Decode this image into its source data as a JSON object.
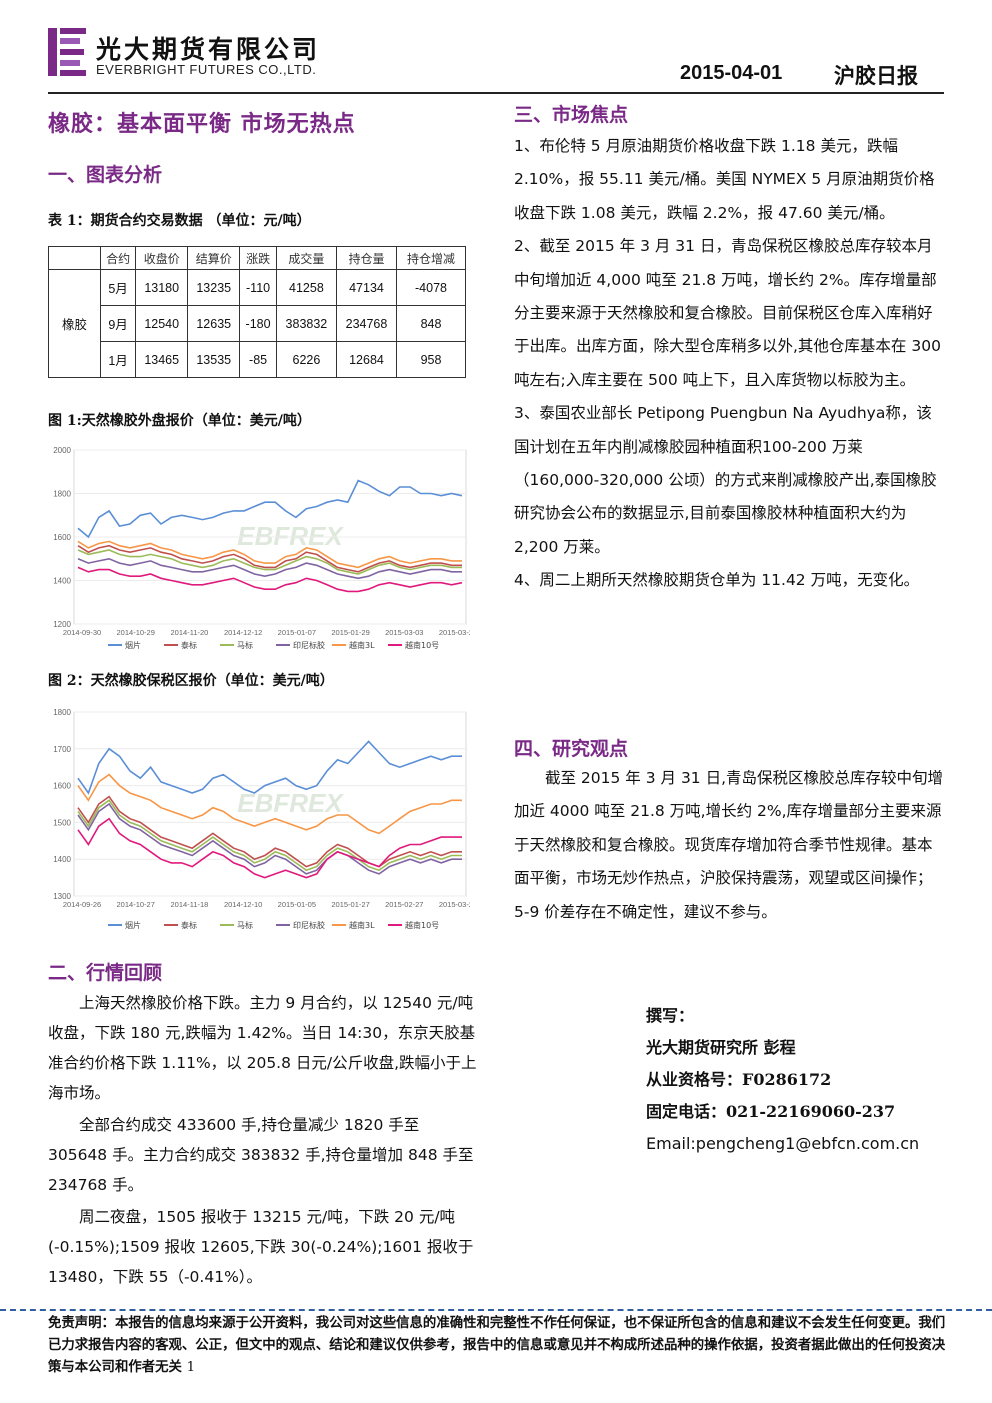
{
  "header": {
    "logo_cn": "光大期货有限公司",
    "logo_en": "EVERBRIGHT FUTURES CO.,LTD.",
    "date": "2015-04-01",
    "report_type": "沪胶日报"
  },
  "title": "橡胶：基本面平衡 市场无热点",
  "section1": {
    "heading": "一、图表分析",
    "table_caption": "表 1：期货合约交易数据 （单位：元/吨）",
    "table": {
      "headers": [
        "合约",
        "收盘价",
        "结算价",
        "涨跌",
        "成交量",
        "持仓量",
        "持仓增减"
      ],
      "product": "橡胶",
      "rows": [
        [
          "5月",
          "13180",
          "13235",
          "-110",
          "41258",
          "47134",
          "-4078"
        ],
        [
          "9月",
          "12540",
          "12635",
          "-180",
          "383832",
          "234768",
          "848"
        ],
        [
          "1月",
          "13465",
          "13535",
          "-85",
          "6226",
          "12684",
          "958"
        ]
      ]
    },
    "fig1_caption": "图 1:天然橡胶外盘报价（单位：美元/吨）",
    "fig2_caption": "图 2：天然橡胶保税区报价（单位：美元/吨）"
  },
  "chart_data": [
    {
      "type": "line",
      "x_ticks": [
        "2014-09-30",
        "2014-10-29",
        "2014-11-20",
        "2014-12-12",
        "2015-01-07",
        "2015-01-29",
        "2015-03-03",
        "2015-03-25"
      ],
      "ylim": [
        1200,
        2000
      ],
      "y_ticks": [
        1200,
        1400,
        1600,
        1800,
        2000
      ],
      "watermark": "EBFREX",
      "series": [
        {
          "name": "烟片",
          "color": "#5a8fd6",
          "values": [
            1640,
            1600,
            1690,
            1720,
            1650,
            1660,
            1700,
            1710,
            1660,
            1690,
            1700,
            1690,
            1680,
            1690,
            1710,
            1720,
            1720,
            1740,
            1760,
            1760,
            1720,
            1690,
            1730,
            1740,
            1760,
            1770,
            1760,
            1860,
            1840,
            1810,
            1790,
            1830,
            1830,
            1800,
            1800,
            1790,
            1800,
            1790
          ]
        },
        {
          "name": "泰标",
          "color": "#c0504d",
          "values": [
            1560,
            1530,
            1550,
            1560,
            1540,
            1530,
            1540,
            1550,
            1530,
            1520,
            1500,
            1490,
            1480,
            1490,
            1510,
            1520,
            1500,
            1470,
            1460,
            1460,
            1490,
            1500,
            1530,
            1520,
            1490,
            1460,
            1450,
            1440,
            1460,
            1480,
            1490,
            1470,
            1460,
            1470,
            1480,
            1480,
            1470,
            1470
          ]
        },
        {
          "name": "马标",
          "color": "#9bbb59",
          "values": [
            1540,
            1520,
            1530,
            1540,
            1520,
            1510,
            1510,
            1520,
            1510,
            1500,
            1480,
            1470,
            1460,
            1470,
            1490,
            1500,
            1480,
            1460,
            1450,
            1450,
            1470,
            1490,
            1510,
            1500,
            1480,
            1450,
            1440,
            1430,
            1450,
            1470,
            1480,
            1460,
            1450,
            1460,
            1470,
            1470,
            1460,
            1460
          ]
        },
        {
          "name": "印尼标胶",
          "color": "#8064a2",
          "values": [
            1500,
            1480,
            1490,
            1500,
            1480,
            1470,
            1480,
            1490,
            1470,
            1460,
            1450,
            1440,
            1440,
            1450,
            1460,
            1470,
            1450,
            1430,
            1420,
            1430,
            1450,
            1460,
            1480,
            1470,
            1450,
            1430,
            1420,
            1410,
            1420,
            1440,
            1450,
            1440,
            1430,
            1440,
            1450,
            1450,
            1440,
            1440
          ]
        },
        {
          "name": "越南3L",
          "color": "#f79646",
          "values": [
            1580,
            1550,
            1570,
            1580,
            1560,
            1550,
            1560,
            1570,
            1550,
            1540,
            1520,
            1510,
            1500,
            1510,
            1530,
            1540,
            1520,
            1490,
            1480,
            1480,
            1510,
            1520,
            1550,
            1540,
            1510,
            1480,
            1470,
            1460,
            1480,
            1500,
            1510,
            1490,
            1480,
            1490,
            1500,
            1500,
            1490,
            1490
          ]
        },
        {
          "name": "越南10号",
          "color": "#e0197d",
          "values": [
            1460,
            1440,
            1450,
            1450,
            1430,
            1420,
            1420,
            1430,
            1410,
            1400,
            1390,
            1380,
            1380,
            1390,
            1400,
            1410,
            1390,
            1370,
            1360,
            1360,
            1380,
            1390,
            1410,
            1400,
            1380,
            1360,
            1350,
            1350,
            1360,
            1380,
            1390,
            1380,
            1370,
            1380,
            1390,
            1390,
            1380,
            1390
          ]
        }
      ]
    },
    {
      "type": "line",
      "x_ticks": [
        "2014-09-26",
        "2014-10-27",
        "2014-11-18",
        "2014-12-10",
        "2015-01-05",
        "2015-01-27",
        "2015-02-27",
        "2015-03-23"
      ],
      "ylim": [
        1300,
        1800
      ],
      "y_ticks": [
        1300,
        1400,
        1500,
        1600,
        1700,
        1800
      ],
      "watermark": "EBFREX",
      "series": [
        {
          "name": "烟片",
          "color": "#5a8fd6",
          "values": [
            1620,
            1580,
            1660,
            1700,
            1680,
            1640,
            1620,
            1650,
            1610,
            1600,
            1590,
            1580,
            1590,
            1620,
            1630,
            1610,
            1590,
            1580,
            1600,
            1610,
            1620,
            1600,
            1590,
            1600,
            1640,
            1670,
            1660,
            1690,
            1720,
            1690,
            1660,
            1650,
            1660,
            1670,
            1680,
            1670,
            1680,
            1680
          ]
        },
        {
          "name": "泰标",
          "color": "#c0504d",
          "values": [
            1540,
            1500,
            1550,
            1570,
            1530,
            1510,
            1500,
            1480,
            1460,
            1450,
            1440,
            1430,
            1450,
            1470,
            1450,
            1430,
            1420,
            1400,
            1410,
            1430,
            1420,
            1400,
            1380,
            1390,
            1420,
            1440,
            1430,
            1410,
            1390,
            1380,
            1400,
            1410,
            1420,
            1410,
            1420,
            1410,
            1420,
            1420
          ]
        },
        {
          "name": "马标",
          "color": "#9bbb59",
          "values": [
            1530,
            1490,
            1540,
            1560,
            1520,
            1500,
            1490,
            1470,
            1450,
            1440,
            1430,
            1420,
            1440,
            1460,
            1440,
            1420,
            1410,
            1390,
            1400,
            1420,
            1410,
            1390,
            1370,
            1380,
            1410,
            1430,
            1420,
            1400,
            1380,
            1370,
            1390,
            1400,
            1410,
            1400,
            1410,
            1400,
            1410,
            1410
          ]
        },
        {
          "name": "印尼标胶",
          "color": "#8064a2",
          "values": [
            1520,
            1480,
            1530,
            1550,
            1510,
            1490,
            1480,
            1460,
            1440,
            1430,
            1420,
            1410,
            1430,
            1450,
            1430,
            1410,
            1400,
            1380,
            1390,
            1410,
            1400,
            1380,
            1360,
            1370,
            1400,
            1420,
            1410,
            1390,
            1370,
            1360,
            1380,
            1390,
            1400,
            1390,
            1400,
            1390,
            1400,
            1400
          ]
        },
        {
          "name": "越南3L",
          "color": "#f79646",
          "values": [
            1600,
            1560,
            1610,
            1630,
            1600,
            1580,
            1570,
            1560,
            1540,
            1530,
            1520,
            1510,
            1520,
            1540,
            1530,
            1510,
            1500,
            1490,
            1500,
            1510,
            1500,
            1490,
            1480,
            1490,
            1510,
            1520,
            1520,
            1500,
            1480,
            1470,
            1490,
            1510,
            1530,
            1540,
            1550,
            1550,
            1560,
            1560
          ]
        },
        {
          "name": "越南10号",
          "color": "#e0197d",
          "values": [
            1480,
            1440,
            1490,
            1510,
            1470,
            1450,
            1440,
            1420,
            1400,
            1390,
            1390,
            1380,
            1400,
            1420,
            1410,
            1390,
            1380,
            1360,
            1350,
            1360,
            1370,
            1360,
            1350,
            1360,
            1400,
            1420,
            1410,
            1400,
            1390,
            1380,
            1410,
            1430,
            1440,
            1440,
            1450,
            1460,
            1460,
            1460
          ]
        }
      ]
    }
  ],
  "section2": {
    "heading": "二、行情回顾",
    "paragraphs": [
      "上海天然橡胶价格下跌。主力 9 月合约，以 12540 元/吨收盘，下跌 180 元,跌幅为 1.42%。当日 14:30，东京天胶基准合约价格下跌 1.11%，以 205.8 日元/公斤收盘,跌幅小于上海市场。",
      "全部合约成交 433600 手,持仓量减少 1820 手至 305648 手。主力合约成交 383832 手,持仓量增加 848 手至 234768 手。",
      "周二夜盘，1505 报收于 13215 元/吨，下跌 20 元/吨(-0.15%);1509 报收 12605,下跌 30(-0.24%);1601 报收于 13480，下跌 55（-0.41%）。"
    ]
  },
  "section3": {
    "heading": "三、市场焦点",
    "paragraphs": [
      "1、布伦特 5 月原油期货价格收盘下跌 1.18 美元，跌幅 2.10%，报 55.11 美元/桶。美国 NYMEX 5 月原油期货价格收盘下跌 1.08 美元，跌幅 2.2%，报 47.60 美元/桶。",
      "2、截至 2015 年 3 月 31 日，青岛保税区橡胶总库存较本月中旬增加近 4,000 吨至 21.8 万吨，增长约 2%。库存增量部分主要来源于天然橡胶和复合橡胶。目前保税区仓库入库稍好于出库。出库方面，除大型仓库稍多以外,其他仓库基本在 300 吨左右;入库主要在 500 吨上下，且入库货物以标胶为主。",
      "3、泰国农业部长 Petipong Puengbun Na Ayudhya称，该国计划在五年内削减橡胶园种植面积100-200 万莱（160,000-320,000 公顷）的方式来削减橡胶产出,泰国橡胶研究协会公布的数据显示,目前泰国橡胶林种植面积大约为 2,200 万莱。",
      "4、周二上期所天然橡胶期货仓单为 11.42 万吨，无变化。"
    ]
  },
  "section4": {
    "heading": "四、研究观点",
    "paragraph": "截至 2015 年 3 月 31 日,青岛保税区橡胶总库存较中旬增加近 4000 吨至 21.8 万吨,增长约 2%,库存增量部分主要来源于天然橡胶和复合橡胶。现货库存增加符合季节性规律。基本面平衡，市场无炒作热点，沪胶保持震荡，观望或区间操作；5-9 价差存在不确定性，建议不参与。"
  },
  "contact": {
    "label": "撰写：",
    "author": "光大期货研究所 彭程",
    "license": "从业资格号：F0286172",
    "phone": "固定电话：021-22169060-237",
    "email": "Email:pengcheng1@ebfcn.com.cn"
  },
  "footer": {
    "disclaimer": "免责声明：本报告的信息均来源于公开资料，我公司对这些信息的准确性和完整性不作任何保证，也不保证所包含的信息和建议不会发生任何变更。我们已力求报告内容的客观、公正，但文中的观点、结论和建议仅供参考，报告中的信息或意见并不构成所述品种的操作依据，投资者据此做出的任何投资决策与本公司和作者无关",
    "page_number": "1"
  }
}
